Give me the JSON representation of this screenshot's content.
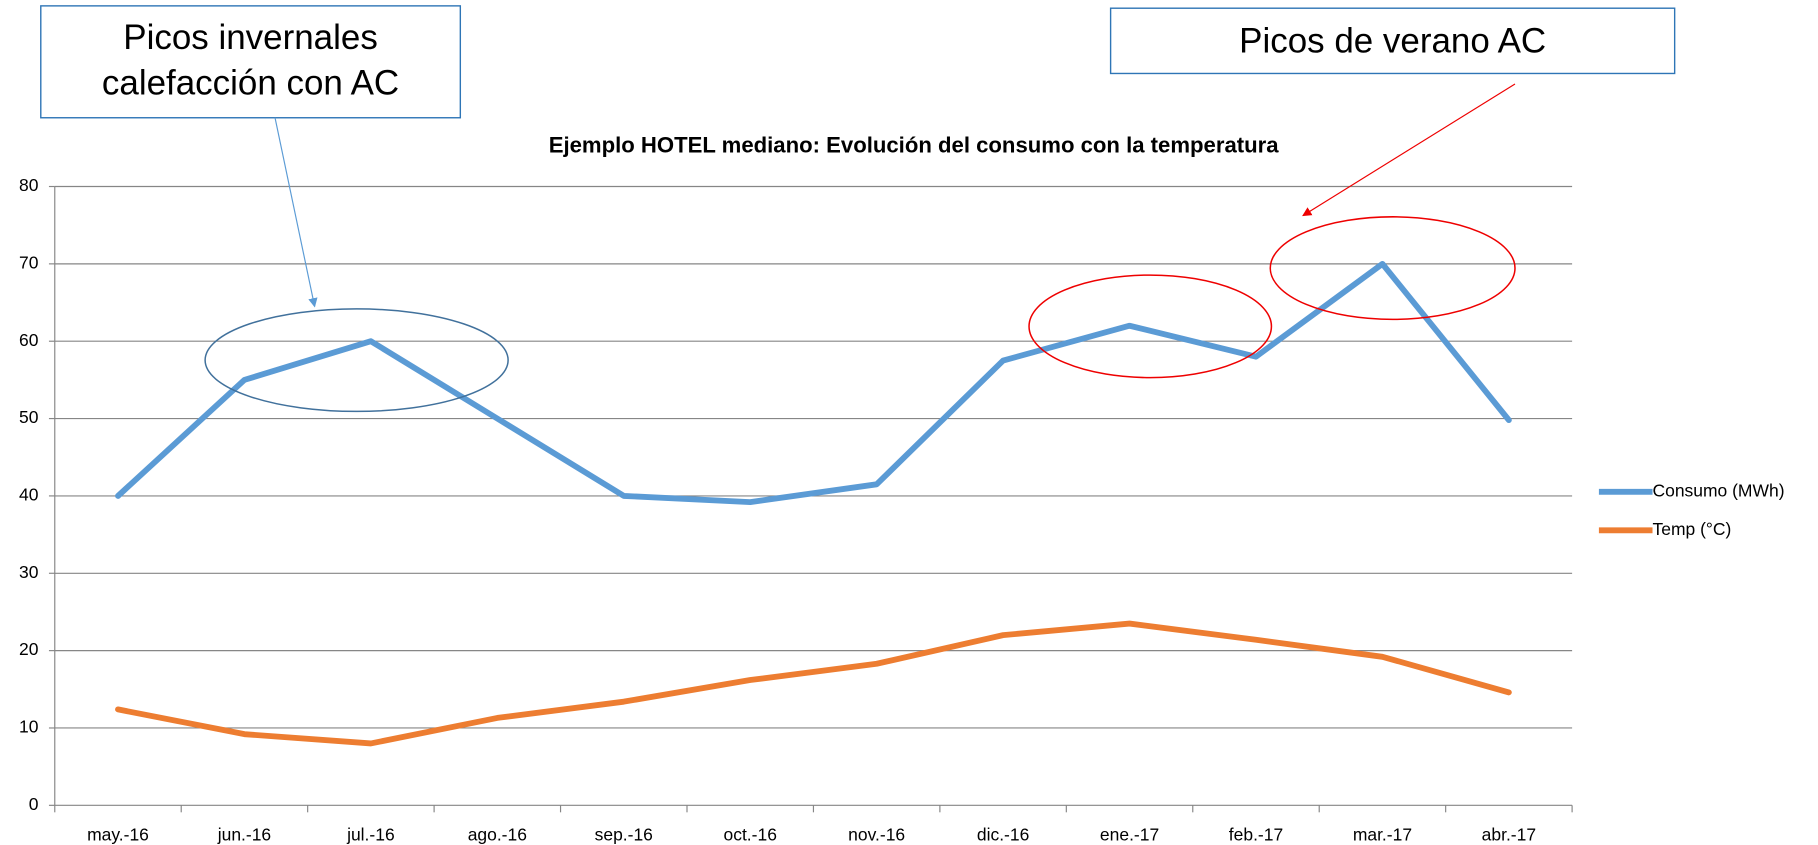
{
  "chart_data": {
    "type": "line",
    "title": "Ejemplo HOTEL mediano: Evolución del consumo con la temperatura",
    "categories": [
      "may.-16",
      "jun.-16",
      "jul.-16",
      "ago.-16",
      "sep.-16",
      "oct.-16",
      "nov.-16",
      "dic.-16",
      "ene.-17",
      "feb.-17",
      "mar.-17",
      "abr.-17"
    ],
    "series": [
      {
        "name": "Consumo (MWh)",
        "color": "#5b9bd5",
        "values": [
          40,
          55,
          60,
          50,
          40,
          39.2,
          41.5,
          57.5,
          62,
          58,
          70,
          49.8
        ]
      },
      {
        "name": "Temp (°C)",
        "color": "#ed7d31",
        "values": [
          12.4,
          9.2,
          8,
          11.3,
          13.4,
          16.2,
          18.3,
          22,
          23.5,
          21.4,
          19.2,
          14.6
        ]
      }
    ],
    "ylim": [
      0,
      80
    ],
    "yticks": [
      0,
      10,
      20,
      30,
      40,
      50,
      60,
      70,
      80
    ],
    "grid": true,
    "legend": "right",
    "annotations": [
      {
        "lines": [
          "Picos invernales",
          "calefacción con AC"
        ]
      },
      {
        "lines": [
          "Picos de verano AC"
        ]
      }
    ]
  }
}
